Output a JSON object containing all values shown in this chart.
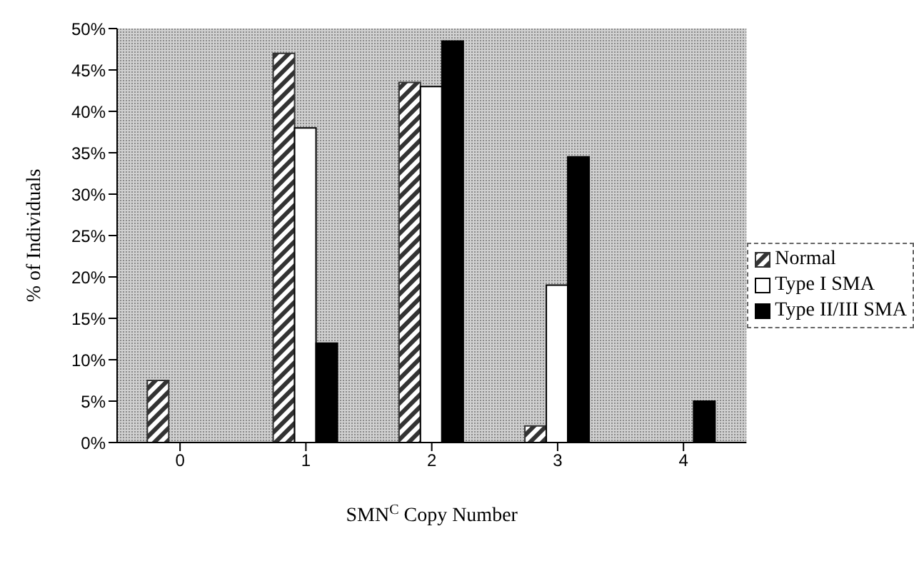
{
  "chart_data": {
    "type": "bar",
    "xlabel": "SMN$^{C}$ Copy Number",
    "ylabel": "% of Individuals",
    "categories": [
      "0",
      "1",
      "2",
      "3",
      "4"
    ],
    "series": [
      {
        "name": "Normal",
        "color": "#333333",
        "values": [
          7.5,
          47,
          43.5,
          2,
          0
        ]
      },
      {
        "name": "Type I SMA",
        "color": "#ffffff",
        "values": [
          0,
          38,
          43,
          19,
          0
        ]
      },
      {
        "name": "Type II/III SMA",
        "color": "#000000",
        "values": [
          0,
          12,
          48.5,
          34.5,
          5
        ]
      }
    ],
    "ylim": [
      0,
      50
    ],
    "yticks": [
      {
        "value": 0,
        "label": "0%"
      },
      {
        "value": 5,
        "label": "5%"
      },
      {
        "value": 10,
        "label": "10%"
      },
      {
        "value": 15,
        "label": "15%"
      },
      {
        "value": 20,
        "label": "20%"
      },
      {
        "value": 25,
        "label": "25%"
      },
      {
        "value": 30,
        "label": "30%"
      },
      {
        "value": 35,
        "label": "35%"
      },
      {
        "value": 40,
        "label": "40%"
      },
      {
        "value": 45,
        "label": "45%"
      },
      {
        "value": 50,
        "label": "50%"
      }
    ],
    "grid": false,
    "legend": "right"
  }
}
